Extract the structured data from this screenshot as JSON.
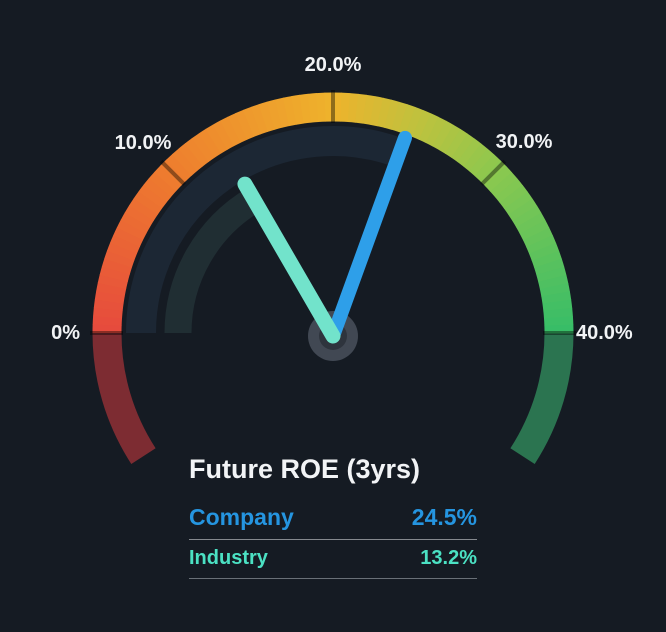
{
  "chart_data": {
    "type": "gauge",
    "title": "Future ROE (3yrs)",
    "unit": "%",
    "min": 0,
    "max": 40,
    "axis_ticks": [
      {
        "value": 0,
        "label": "0%"
      },
      {
        "value": 10,
        "label": "10.0%"
      },
      {
        "value": 20,
        "label": "20.0%"
      },
      {
        "value": 30,
        "label": "30.0%"
      },
      {
        "value": 40,
        "label": "40.0%"
      }
    ],
    "series": [
      {
        "name": "Company",
        "value": 24.5,
        "display": "24.5%",
        "needle_color": "#2e9fe9",
        "text_color": "#2595e0",
        "trail_color": "#1c2734"
      },
      {
        "name": "Industry",
        "value": 13.2,
        "display": "13.2%",
        "needle_color": "#72e3cb",
        "text_color": "#4be1c3",
        "trail_color": "#202e33"
      }
    ],
    "band_gradient_stops": [
      {
        "at": 0,
        "color": "#e64a3d"
      },
      {
        "at": 10,
        "color": "#ee7d2e"
      },
      {
        "at": 20,
        "color": "#eeb32c"
      },
      {
        "at": 25,
        "color": "#bec23e"
      },
      {
        "at": 30,
        "color": "#8cc84f"
      },
      {
        "at": 40,
        "color": "#36bd68"
      }
    ],
    "out_of_range": {
      "below_min_color": "#7d2c32",
      "above_max_color": "#2b7450"
    },
    "colors": {
      "background": "#151b23",
      "hub_outer": "#414853",
      "hub_inner": "#2e343d",
      "tick_line": "rgba(0,0,0,0.40)",
      "axis_label": "#f1f3f5",
      "title": "#f2f4f6",
      "divider_top": "#85898e",
      "divider_bottom": "#697077"
    }
  }
}
